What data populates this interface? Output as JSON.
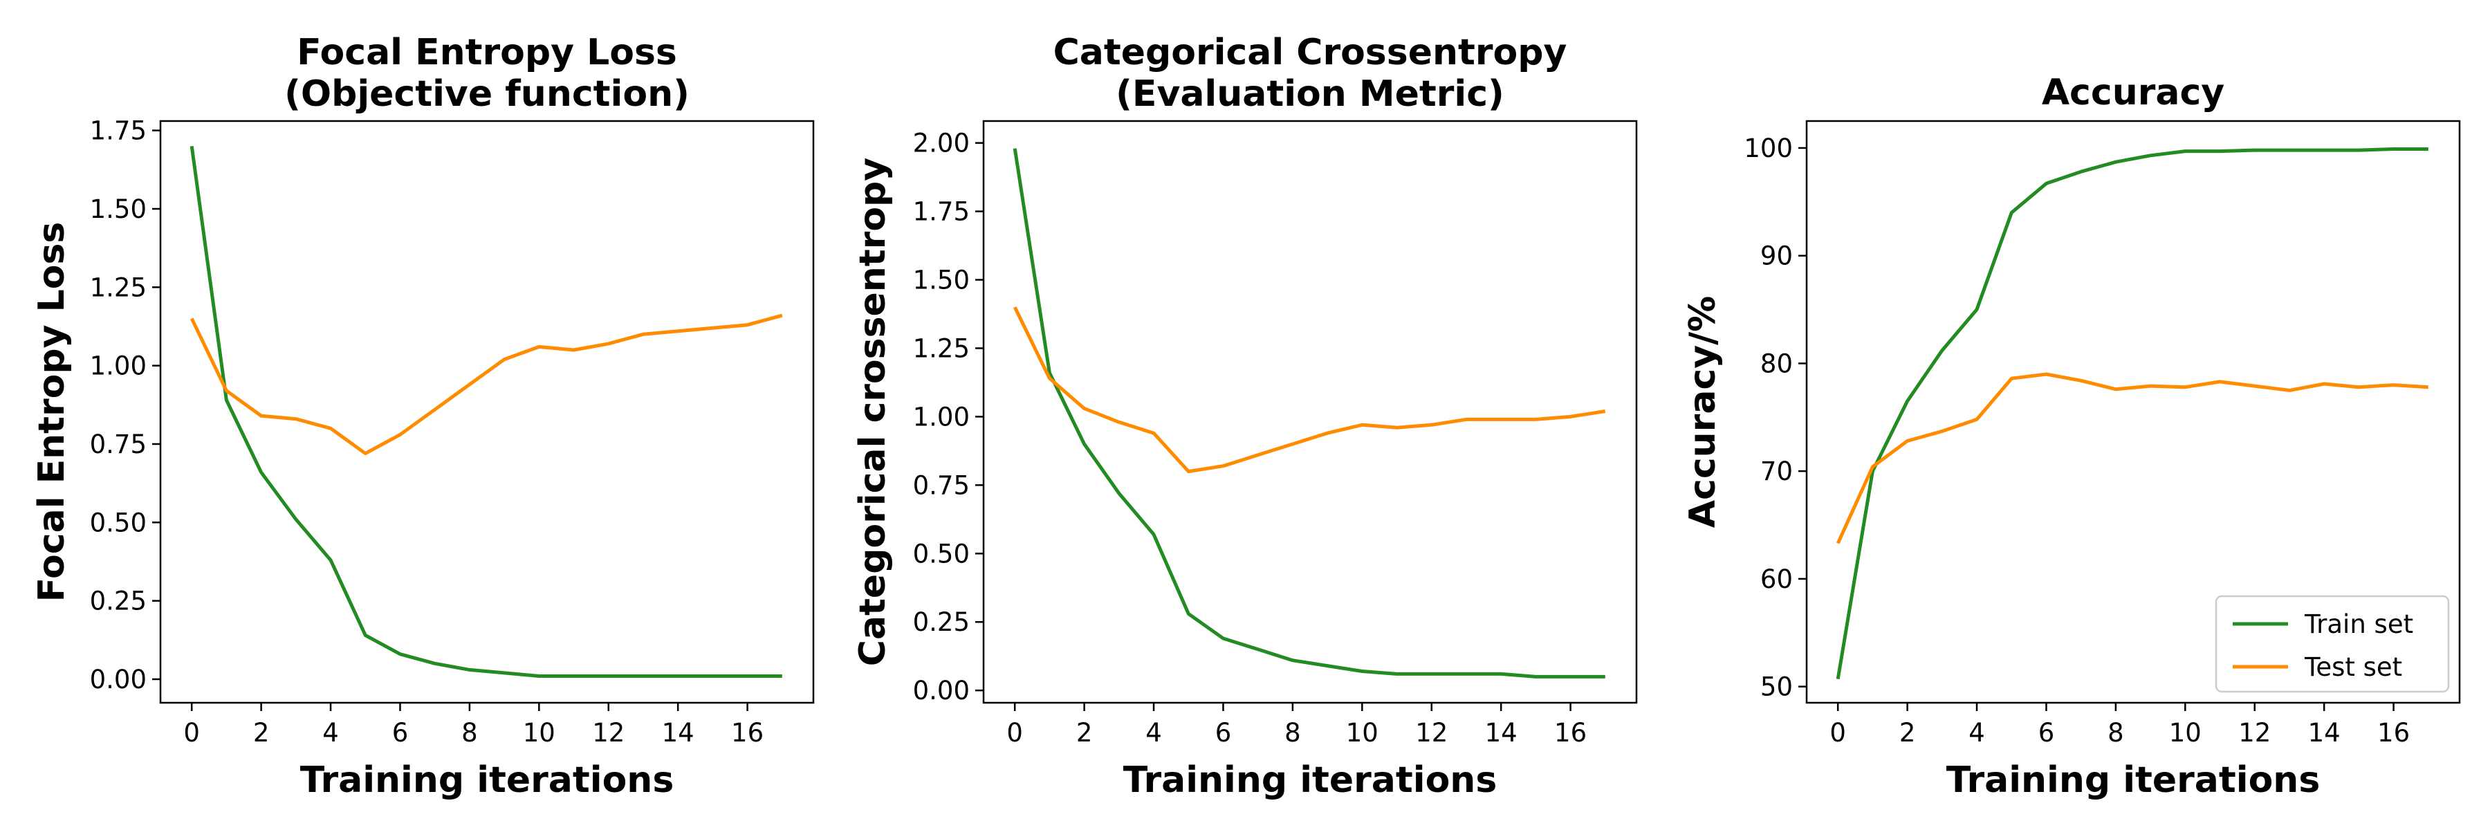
{
  "colors": {
    "train": "#228b22",
    "test": "#ff8c00"
  },
  "legend": {
    "entries": [
      "Train set",
      "Test set"
    ],
    "placement": "lower-right"
  },
  "chart_data": [
    {
      "type": "line",
      "title": [
        "Focal Entropy Loss",
        "(Objective function)"
      ],
      "xlabel": "Training iterations",
      "ylabel": "Focal Entropy Loss",
      "xlim": [
        -0.9,
        17.9
      ],
      "ylim": [
        -0.075,
        1.78
      ],
      "xticks": [
        0,
        2,
        4,
        6,
        8,
        10,
        12,
        14,
        16
      ],
      "xtick_labels": [
        "0",
        "2",
        "4",
        "6",
        "8",
        "10",
        "12",
        "14",
        "16"
      ],
      "yticks": [
        0,
        0.25,
        0.5,
        0.75,
        1.0,
        1.25,
        1.5,
        1.75
      ],
      "ytick_labels": [
        "0.00",
        "0.25",
        "0.50",
        "0.75",
        "1.00",
        "1.25",
        "1.50",
        "1.75"
      ],
      "grid": false,
      "x": [
        0,
        1,
        2,
        3,
        4,
        5,
        6,
        7,
        8,
        9,
        10,
        11,
        12,
        13,
        14,
        15,
        16,
        17
      ],
      "series": [
        {
          "name": "Train set",
          "values": [
            1.7,
            0.89,
            0.66,
            0.51,
            0.38,
            0.14,
            0.08,
            0.05,
            0.03,
            0.02,
            0.01,
            0.01,
            0.01,
            0.01,
            0.01,
            0.01,
            0.01,
            0.01
          ]
        },
        {
          "name": "Test set",
          "values": [
            1.15,
            0.92,
            0.84,
            0.83,
            0.8,
            0.72,
            0.78,
            0.86,
            0.94,
            1.02,
            1.06,
            1.05,
            1.07,
            1.1,
            1.11,
            1.12,
            1.13,
            1.16
          ]
        }
      ]
    },
    {
      "type": "line",
      "title": [
        "Categorical Crossentropy",
        "(Evaluation Metric)"
      ],
      "xlabel": "Training iterations",
      "ylabel": "Categorical crossentropy",
      "xlim": [
        -0.9,
        17.9
      ],
      "ylim": [
        -0.045,
        2.08
      ],
      "xticks": [
        0,
        2,
        4,
        6,
        8,
        10,
        12,
        14,
        16
      ],
      "xtick_labels": [
        "0",
        "2",
        "4",
        "6",
        "8",
        "10",
        "12",
        "14",
        "16"
      ],
      "yticks": [
        0,
        0.25,
        0.5,
        0.75,
        1.0,
        1.25,
        1.5,
        1.75,
        2.0
      ],
      "ytick_labels": [
        "0.00",
        "0.25",
        "0.50",
        "0.75",
        "1.00",
        "1.25",
        "1.50",
        "1.75",
        "2.00"
      ],
      "grid": false,
      "x": [
        0,
        1,
        2,
        3,
        4,
        5,
        6,
        7,
        8,
        9,
        10,
        11,
        12,
        13,
        14,
        15,
        16,
        17
      ],
      "series": [
        {
          "name": "Train set",
          "values": [
            1.98,
            1.16,
            0.9,
            0.72,
            0.57,
            0.28,
            0.19,
            0.15,
            0.11,
            0.09,
            0.07,
            0.06,
            0.06,
            0.06,
            0.06,
            0.05,
            0.05,
            0.05
          ]
        },
        {
          "name": "Test set",
          "values": [
            1.4,
            1.14,
            1.03,
            0.98,
            0.94,
            0.8,
            0.82,
            0.86,
            0.9,
            0.94,
            0.97,
            0.96,
            0.97,
            0.99,
            0.99,
            0.99,
            1.0,
            1.02
          ]
        }
      ]
    },
    {
      "type": "line",
      "title": [
        "Accuracy"
      ],
      "xlabel": "Training iterations",
      "ylabel": "Accuracy/%",
      "xlim": [
        -0.9,
        17.9
      ],
      "ylim": [
        48.5,
        102.5
      ],
      "xticks": [
        0,
        2,
        4,
        6,
        8,
        10,
        12,
        14,
        16
      ],
      "xtick_labels": [
        "0",
        "2",
        "4",
        "6",
        "8",
        "10",
        "12",
        "14",
        "16"
      ],
      "yticks": [
        50,
        60,
        70,
        80,
        90,
        100
      ],
      "ytick_labels": [
        "50",
        "60",
        "70",
        "80",
        "90",
        "100"
      ],
      "grid": false,
      "show_legend": true,
      "x": [
        0,
        1,
        2,
        3,
        4,
        5,
        6,
        7,
        8,
        9,
        10,
        11,
        12,
        13,
        14,
        15,
        16,
        17
      ],
      "series": [
        {
          "name": "Train set",
          "values": [
            50.7,
            70.0,
            76.5,
            81.2,
            85.0,
            94.0,
            96.7,
            97.8,
            98.7,
            99.3,
            99.7,
            99.7,
            99.8,
            99.8,
            99.8,
            99.8,
            99.9,
            99.9
          ]
        },
        {
          "name": "Test set",
          "values": [
            63.3,
            70.4,
            72.8,
            73.7,
            74.8,
            78.6,
            79.0,
            78.4,
            77.6,
            77.9,
            77.8,
            78.3,
            77.9,
            77.5,
            78.1,
            77.8,
            78.0,
            77.8
          ]
        }
      ]
    }
  ]
}
